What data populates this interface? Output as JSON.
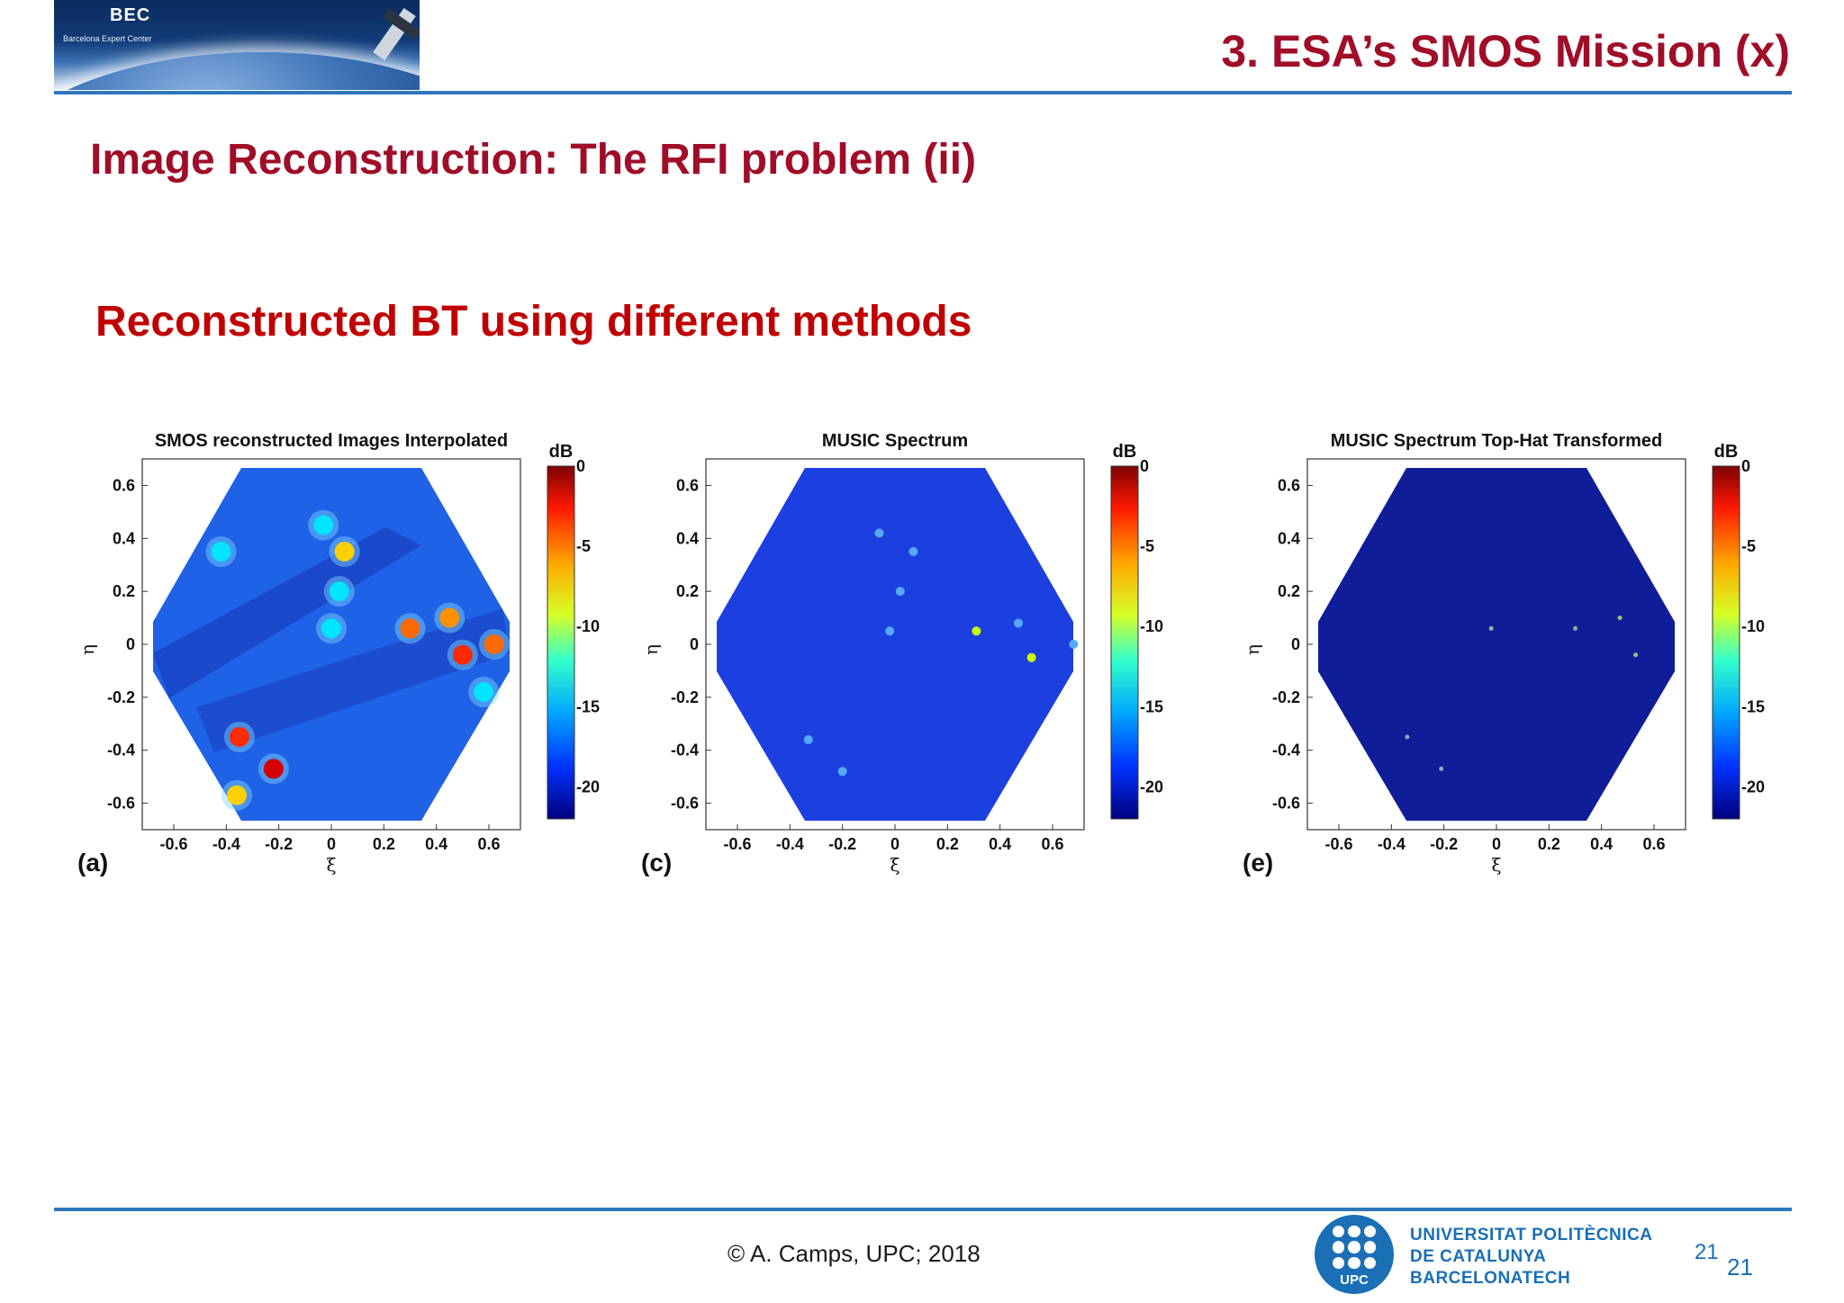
{
  "header": {
    "logo_text": "BEC",
    "logo_subtitle": "Barcelona Expert Center",
    "title": "3. ESA’s SMOS Mission (x)"
  },
  "subtitle": "Image Reconstruction: The RFI problem (ii)",
  "section_heading": "Reconstructed BT using different methods",
  "figures": [
    {
      "title": "SMOS reconstructed Images Interpolated",
      "panel_label": "(a)",
      "colorbar_unit": "dB",
      "colorbar_ticks": [
        "0",
        "-5",
        "-10",
        "-15",
        "-20"
      ],
      "xlabel": "ξ",
      "ylabel": "η",
      "xticks": [
        "-0.6",
        "-0.4",
        "-0.2",
        "0",
        "0.2",
        "0.4",
        "0.6"
      ],
      "yticks": [
        "0.6",
        "0.4",
        "0.2",
        "0",
        "-0.2",
        "-0.4",
        "-0.6"
      ]
    },
    {
      "title": "MUSIC Spectrum",
      "panel_label": "(c)",
      "colorbar_unit": "dB",
      "colorbar_ticks": [
        "0",
        "-5",
        "-10",
        "-15",
        "-20"
      ],
      "xlabel": "ξ",
      "ylabel": "η",
      "xticks": [
        "-0.6",
        "-0.4",
        "-0.2",
        "0",
        "0.2",
        "0.4",
        "0.6"
      ],
      "yticks": [
        "0.6",
        "0.4",
        "0.2",
        "0",
        "-0.2",
        "-0.4",
        "-0.6"
      ]
    },
    {
      "title": "MUSIC Spectrum Top-Hat Transformed",
      "panel_label": "(e)",
      "colorbar_unit": "dB",
      "colorbar_ticks": [
        "0",
        "-5",
        "-10",
        "-15",
        "-20"
      ],
      "xlabel": "ξ",
      "ylabel": "η",
      "xticks": [
        "-0.6",
        "-0.4",
        "-0.2",
        "0",
        "0.2",
        "0.4",
        "0.6"
      ],
      "yticks": [
        "0.6",
        "0.4",
        "0.2",
        "0",
        "-0.2",
        "-0.4",
        "-0.6"
      ]
    }
  ],
  "footer": {
    "copyright": "© A. Camps, UPC; 2018",
    "logo_text": "UPC",
    "university_line1": "UNIVERSITAT POLITÈCNICA",
    "university_line2": "DE CATALUNYA",
    "university_line3": "BARCELONATECH",
    "page_number_small": "21",
    "page_number": "21"
  },
  "colors": {
    "title_red": "#a00d28",
    "heading_red": "#c00000",
    "rule_blue": "#2e77bd",
    "upc_blue": "#1a6fb5"
  }
}
